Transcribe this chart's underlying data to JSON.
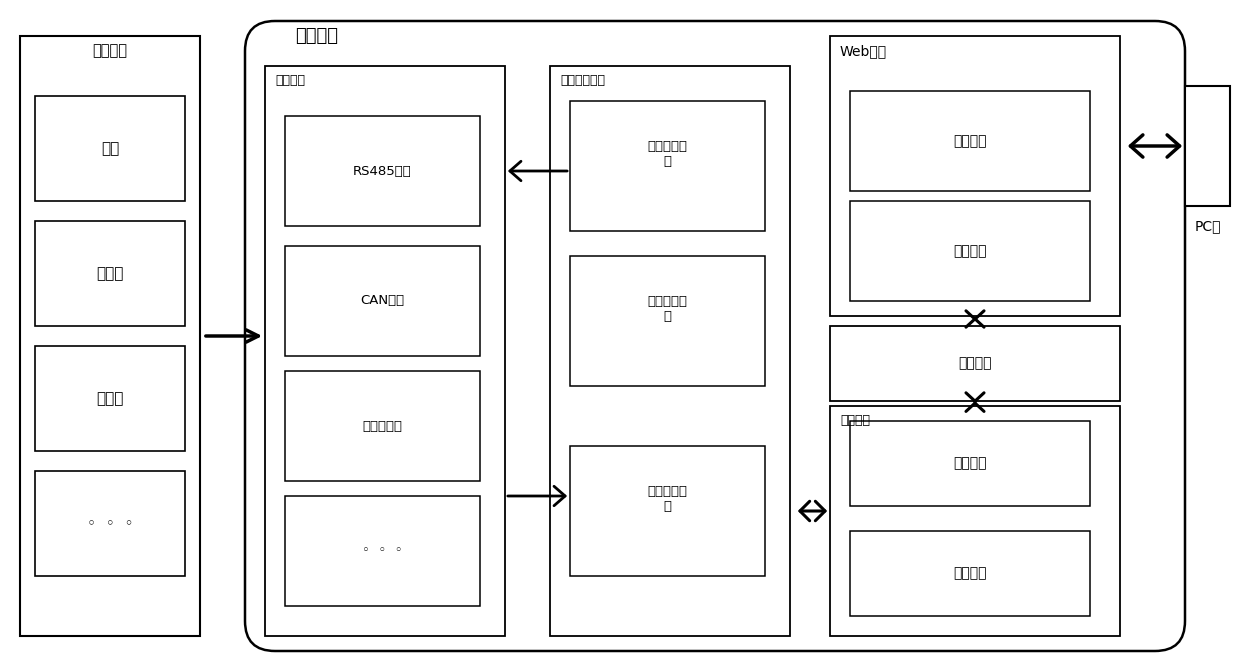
{
  "bg_color": "#ffffff",
  "line_color": "#000000",
  "font_color": "#000000",
  "fig_width": 12.4,
  "fig_height": 6.66,
  "dpi": 100,
  "labels": {
    "hvac": "暖通设备",
    "ac": "空调",
    "heater": "热水器",
    "fresh_air": "新风机",
    "dots": "◦  ◦  ◦",
    "gateway": "工业网关",
    "comm_port": "通信端口",
    "rs485": "RS485模块",
    "can": "CAN模块",
    "ethernet": "以太网模块",
    "comm_adapt": "通信适配模块",
    "dev_id": "设备识别模块",
    "proto_conv": "协议转换模块",
    "data_transceive": "数据收发模块",
    "web_module": "Web模块",
    "access_ctrl": "访问控制",
    "data_transfer": "数据传输",
    "storage": "存储模块",
    "app_module": "应用模块",
    "logic": "逻辑处理",
    "function": "功能模块",
    "pc": "PC端"
  }
}
